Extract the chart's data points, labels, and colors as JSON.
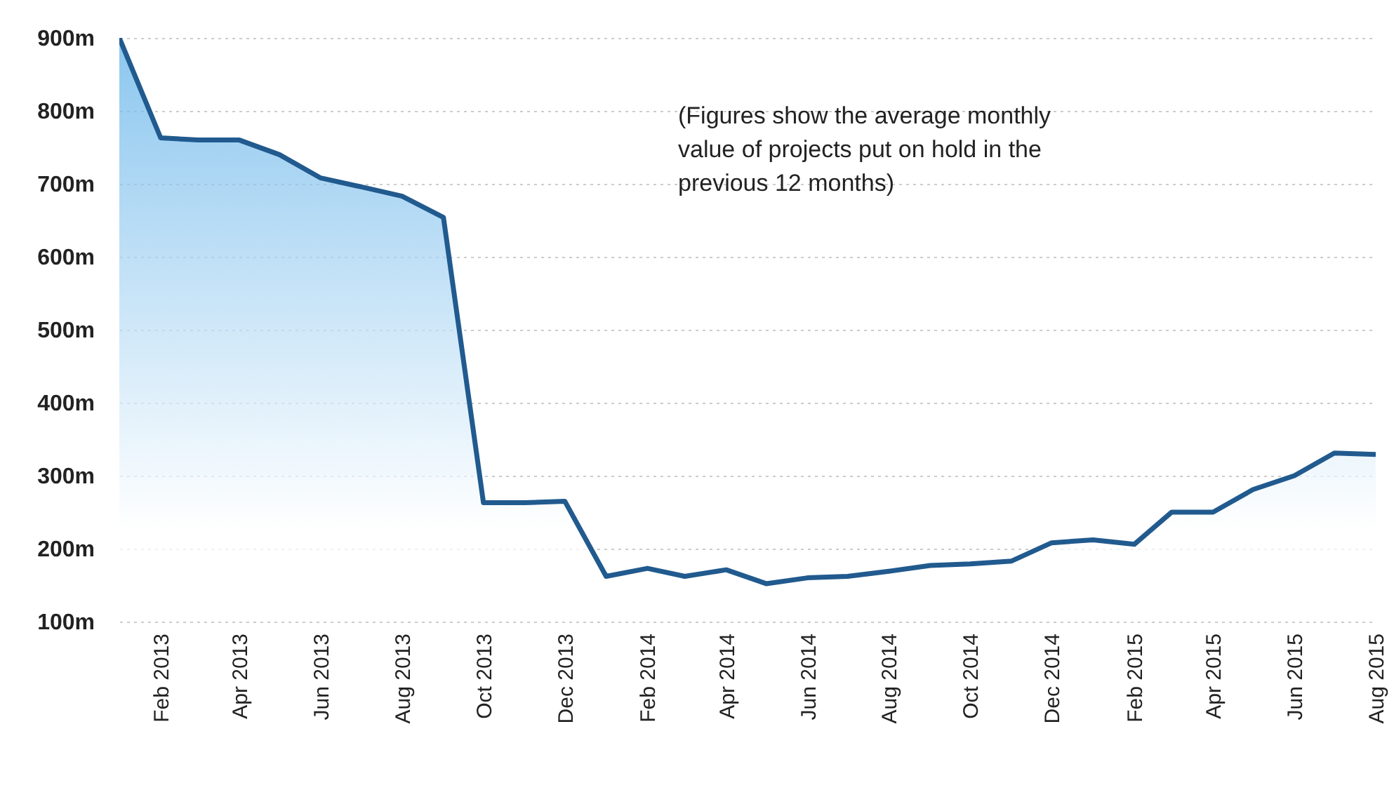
{
  "chart_data": {
    "type": "area",
    "x": [
      "2013-01",
      "2013-02",
      "2013-03",
      "2013-04",
      "2013-05",
      "2013-06",
      "2013-07",
      "2013-08",
      "2013-09",
      "2013-10",
      "2013-11",
      "2013-12",
      "2014-01",
      "2014-02",
      "2014-03",
      "2014-04",
      "2014-05",
      "2014-06",
      "2014-07",
      "2014-08",
      "2014-09",
      "2014-10",
      "2014-11",
      "2014-12",
      "2015-01",
      "2015-02",
      "2015-03",
      "2015-04",
      "2015-05",
      "2015-06",
      "2015-07",
      "2015-08"
    ],
    "series": [
      {
        "color": "#215a8e",
        "values": [
          900,
          763,
          760,
          760,
          740,
          708,
          696,
          683,
          654,
          263,
          263,
          265,
          162,
          173,
          162,
          171,
          152,
          160,
          162,
          169,
          177,
          179,
          183,
          208,
          212,
          206,
          250,
          250,
          281,
          300,
          331,
          329
        ]
      }
    ],
    "ylim": [
      100,
      900
    ],
    "yticks": [
      {
        "value": 100,
        "label": "100m"
      },
      {
        "value": 200,
        "label": "200m"
      },
      {
        "value": 300,
        "label": "300m"
      },
      {
        "value": 400,
        "label": "400m"
      },
      {
        "value": 500,
        "label": "500m"
      },
      {
        "value": 600,
        "label": "600m"
      },
      {
        "value": 700,
        "label": "700m"
      },
      {
        "value": 800,
        "label": "800m"
      },
      {
        "value": 900,
        "label": "900m"
      }
    ],
    "xlim": [
      "2013-01",
      "2015-08"
    ],
    "xticks": [
      {
        "value": "2013-02",
        "label": "Feb 2013"
      },
      {
        "value": "2013-04",
        "label": "Apr 2013"
      },
      {
        "value": "2013-06",
        "label": "Jun 2013"
      },
      {
        "value": "2013-08",
        "label": "Aug 2013"
      },
      {
        "value": "2013-10",
        "label": "Oct 2013"
      },
      {
        "value": "2013-12",
        "label": "Dec 2013"
      },
      {
        "value": "2014-02",
        "label": "Feb 2014"
      },
      {
        "value": "2014-04",
        "label": "Apr 2014"
      },
      {
        "value": "2014-06",
        "label": "Jun 2014"
      },
      {
        "value": "2014-08",
        "label": "Aug 2014"
      },
      {
        "value": "2014-10",
        "label": "Oct 2014"
      },
      {
        "value": "2014-12",
        "label": "Dec 2014"
      },
      {
        "value": "2015-02",
        "label": "Feb 2015"
      },
      {
        "value": "2015-04",
        "label": "Apr 2015"
      },
      {
        "value": "2015-06",
        "label": "Jun 2015"
      },
      {
        "value": "2015-08",
        "label": "Aug 2015"
      }
    ],
    "grid": "y",
    "annotations": [
      "(Figures show the average monthly value of projects put on hold in the previous 12 months)"
    ]
  }
}
